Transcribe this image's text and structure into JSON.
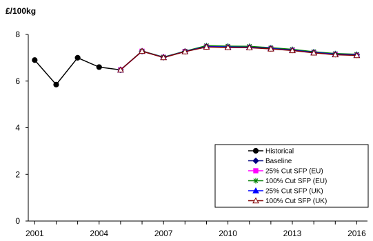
{
  "chart_data": {
    "type": "line",
    "ylabel": "£/100kg",
    "xlim": [
      2000.7,
      2016.5
    ],
    "ylim": [
      0,
      8
    ],
    "y_ticks": [
      "0",
      "2",
      "4",
      "6",
      "8"
    ],
    "x_ticks": [
      "2001",
      "2004",
      "2007",
      "2010",
      "2013",
      "2016"
    ],
    "x_tick_values": [
      2001,
      2004,
      2007,
      2010,
      2013,
      2016
    ],
    "y_tick_values": [
      0,
      2,
      4,
      6,
      8
    ],
    "grid": false,
    "legend_position": "bottom-right",
    "series": [
      {
        "name": "Historical",
        "color": "#000000",
        "marker": "circle",
        "x": [
          2001,
          2002,
          2003,
          2004,
          2005
        ],
        "y": [
          6.9,
          5.85,
          7.0,
          6.6,
          6.48
        ]
      },
      {
        "name": "Baseline",
        "color": "#000080",
        "marker": "diamond",
        "x": [
          2005,
          2006,
          2007,
          2008,
          2009,
          2010,
          2011,
          2012,
          2013,
          2014,
          2015,
          2016
        ],
        "y": [
          6.48,
          7.28,
          7.02,
          7.27,
          7.48,
          7.46,
          7.45,
          7.4,
          7.33,
          7.23,
          7.15,
          7.12
        ]
      },
      {
        "name": "25% Cut SFP (EU)",
        "color": "#FF00FF",
        "marker": "square",
        "x": [
          2005,
          2006,
          2007,
          2008,
          2009,
          2010,
          2011,
          2012,
          2013,
          2014,
          2015,
          2016
        ],
        "y": [
          6.48,
          7.28,
          7.02,
          7.27,
          7.47,
          7.45,
          7.44,
          7.39,
          7.32,
          7.22,
          7.14,
          7.11
        ]
      },
      {
        "name": "100% Cut SFP (EU)",
        "color": "#008000",
        "marker": "asterisk",
        "x": [
          2005,
          2006,
          2007,
          2008,
          2009,
          2010,
          2011,
          2012,
          2013,
          2014,
          2015,
          2016
        ],
        "y": [
          6.48,
          7.29,
          7.03,
          7.28,
          7.52,
          7.5,
          7.49,
          7.43,
          7.36,
          7.26,
          7.18,
          7.15
        ]
      },
      {
        "name": "25% Cut SFP (UK)",
        "color": "#0000FF",
        "marker": "triangle",
        "x": [
          2005,
          2006,
          2007,
          2008,
          2009,
          2010,
          2011,
          2012,
          2013,
          2014,
          2015,
          2016
        ],
        "y": [
          6.48,
          7.28,
          7.02,
          7.27,
          7.48,
          7.46,
          7.45,
          7.4,
          7.33,
          7.23,
          7.15,
          7.12
        ]
      },
      {
        "name": "100% Cut SFP (UK)",
        "color": "#800000",
        "marker": "triangle-open",
        "x": [
          2005,
          2006,
          2007,
          2008,
          2009,
          2010,
          2011,
          2012,
          2013,
          2014,
          2015,
          2016
        ],
        "y": [
          6.48,
          7.28,
          7.01,
          7.26,
          7.46,
          7.44,
          7.43,
          7.38,
          7.31,
          7.21,
          7.13,
          7.1
        ]
      }
    ]
  }
}
